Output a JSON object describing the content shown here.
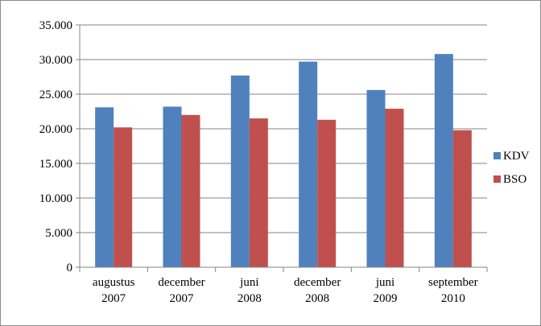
{
  "chart_data": {
    "type": "bar",
    "categories": [
      [
        "augustus",
        "2007"
      ],
      [
        "december",
        "2007"
      ],
      [
        "juni",
        "2008"
      ],
      [
        "december",
        "2008"
      ],
      [
        "juni",
        "2009"
      ],
      [
        "september",
        "2010"
      ]
    ],
    "series": [
      {
        "name": "KDV",
        "color": "#4f81bd",
        "values": [
          23100,
          23200,
          27700,
          29700,
          25600,
          30800
        ]
      },
      {
        "name": "BSO",
        "color": "#c0504d",
        "values": [
          20200,
          22000,
          21500,
          21300,
          22900,
          19800
        ]
      }
    ],
    "y_ticks": [
      "0",
      "5.000",
      "10.000",
      "15.000",
      "20.000",
      "25.000",
      "30.000",
      "35.000"
    ],
    "ylim": [
      0,
      35000
    ],
    "y_step": 5000,
    "gridlines": true,
    "legend_position": "right"
  }
}
